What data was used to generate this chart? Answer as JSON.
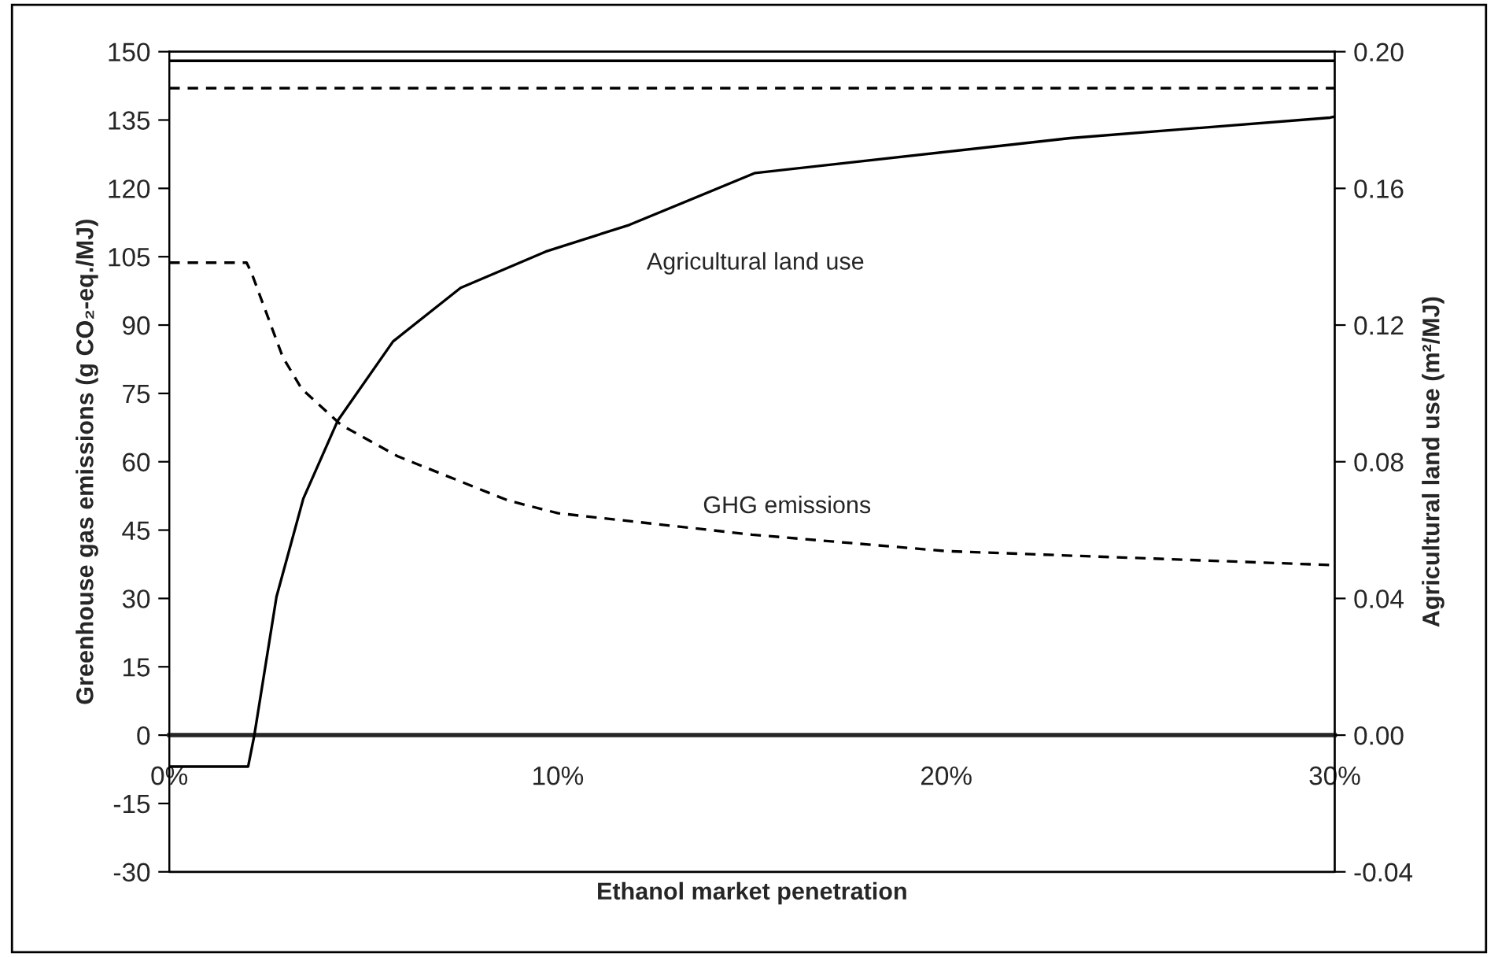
{
  "chart_data": {
    "type": "line",
    "xlabel": "Ethanol market penetration",
    "ylabel": "Greenhouse gas emissions (g CO₂-eq./MJ)",
    "y2label": "Agricultural land use (m²/MJ)",
    "series": [
      {
        "color": "#000000",
        "axis": "y2",
        "line_style": "solid",
        "x": [
          0,
          2.03,
          2.19,
          2.76,
          3.45,
          4.34,
          5.76,
          7.5,
          9.69,
          11.84,
          15.08,
          23.19,
          29.88,
          30
        ],
        "values": [
          -0.0092,
          -0.0092,
          0,
          0.0405,
          0.0692,
          0.0921,
          0.1152,
          0.1309,
          0.1415,
          0.1493,
          0.1645,
          0.1747,
          0.1807,
          0.181
        ]
      },
      {
        "color": "#000000",
        "axis": "y",
        "line_style": "dashed",
        "x": [
          0,
          1.99,
          2.11,
          2.92,
          3.41,
          4.42,
          5.88,
          8.72,
          10.01,
          15.0,
          19.98,
          30
        ],
        "values": [
          103.7,
          103.7,
          101.6,
          83,
          76,
          68.1,
          61.2,
          51.5,
          48.7,
          44,
          40.4,
          37.3
        ]
      }
    ],
    "xlim": [
      0,
      30
    ],
    "xticks": [
      {
        "value": 0,
        "label": "0%"
      },
      {
        "value": 10,
        "label": "10%"
      },
      {
        "value": 20,
        "label": "20%"
      },
      {
        "value": 30,
        "label": "30%"
      }
    ],
    "ylim": [
      -30,
      150
    ],
    "yticks": [
      -30,
      -15,
      0,
      15,
      30,
      45,
      60,
      75,
      90,
      105,
      120,
      135,
      150
    ],
    "y2lim": [
      -0.04,
      0.2
    ],
    "y2ticks": [
      {
        "value": -0.04,
        "label": "-0.04"
      },
      {
        "value": 0,
        "label": "0.00"
      },
      {
        "value": 0.04,
        "label": "0.04"
      },
      {
        "value": 0.08,
        "label": "0.08"
      },
      {
        "value": 0.12,
        "label": "0.12"
      },
      {
        "value": 0.16,
        "label": "0.16"
      },
      {
        "value": 0.2,
        "label": "0.20"
      }
    ],
    "ref_lines": [
      {
        "axis": "y",
        "value": 148,
        "label": null,
        "line_style": "solid",
        "color": "#000000"
      },
      {
        "axis": "y",
        "value": 142,
        "label": null,
        "line_style": "dashed",
        "color": "#000000"
      }
    ],
    "annotations": [
      "Agricultural land use",
      "GHG emissions"
    ],
    "grid": false,
    "legend": false
  }
}
